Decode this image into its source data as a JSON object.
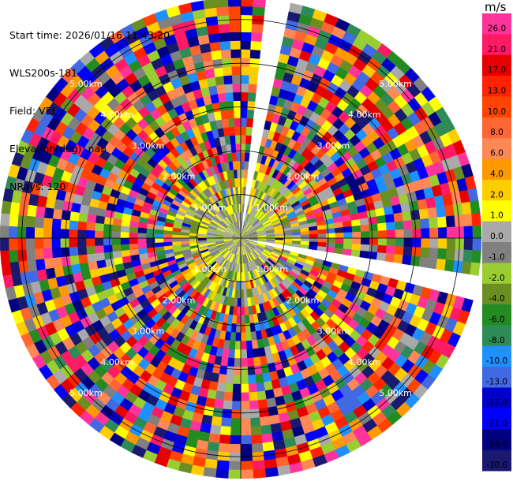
{
  "header": {
    "start_time": "Start time: 2026/01/16 11:43:20",
    "site": "WLS200s-181",
    "field": "Field: VEL",
    "elevation": "Elevation(deg): nan",
    "nrays": "NRays: 120"
  },
  "colorbar": {
    "unit": "m/s",
    "ticks": [
      "26.0",
      "21.0",
      "17.0",
      "13.0",
      "10.0",
      "8.0",
      "6.0",
      "4.0",
      "2.0",
      "1.0",
      "0.0",
      "-1.0",
      "-2.0",
      "-4.0",
      "-6.0",
      "-8.0",
      "-10.0",
      "-13.0",
      "-17.0",
      "-21.0",
      "-26.0",
      "-30.0"
    ],
    "colors": [
      "#ff3399",
      "#ff1a66",
      "#e60000",
      "#ff2200",
      "#ff4400",
      "#ff6633",
      "#ff8855",
      "#ff9900",
      "#ffcc00",
      "#ffff00",
      "#a9a9a9",
      "#808080",
      "#9acd32",
      "#6b8e23",
      "#228b22",
      "#2e8b57",
      "#1e90ff",
      "#4169e1",
      "#0000cd",
      "#0000ff",
      "#000080",
      "#191970"
    ]
  },
  "chart_data": {
    "type": "heatmap",
    "projection": "PPI (polar, range rings in km)",
    "field": "VEL",
    "nrays": 120,
    "range_ring_labels": [
      "1.00km",
      "2.00km",
      "3.00km",
      "4.00km",
      "5.00km"
    ],
    "range_rings_km": [
      1,
      2,
      3,
      4,
      5
    ],
    "max_range_km": 5.5,
    "value_range": [
      -30.0,
      26.0
    ],
    "missing_rays_azimuth_deg": [
      8,
      10,
      100,
      102
    ],
    "pattern": "near-zero (grey/green/yellow) velocities within ~1.5 km, noisy multicolor values beyond"
  }
}
